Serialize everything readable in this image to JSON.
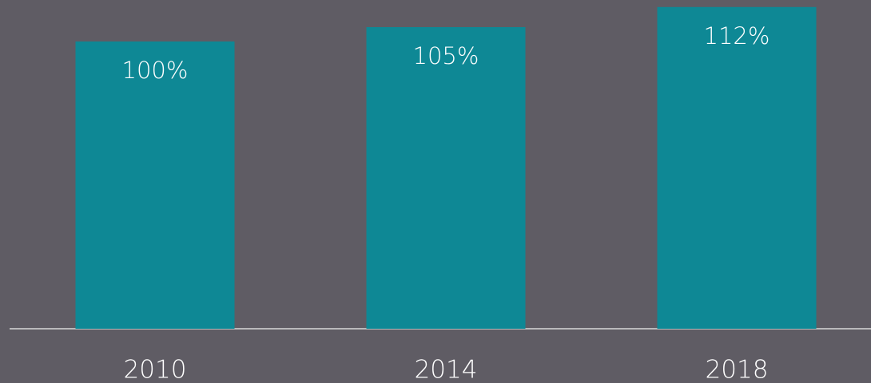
{
  "chart_data": {
    "type": "bar",
    "categories": [
      "2010",
      "2014",
      "2018"
    ],
    "values": [
      100,
      105,
      112
    ],
    "value_labels": [
      "100%",
      "105%",
      "112%"
    ],
    "color": "#0e8895"
  }
}
